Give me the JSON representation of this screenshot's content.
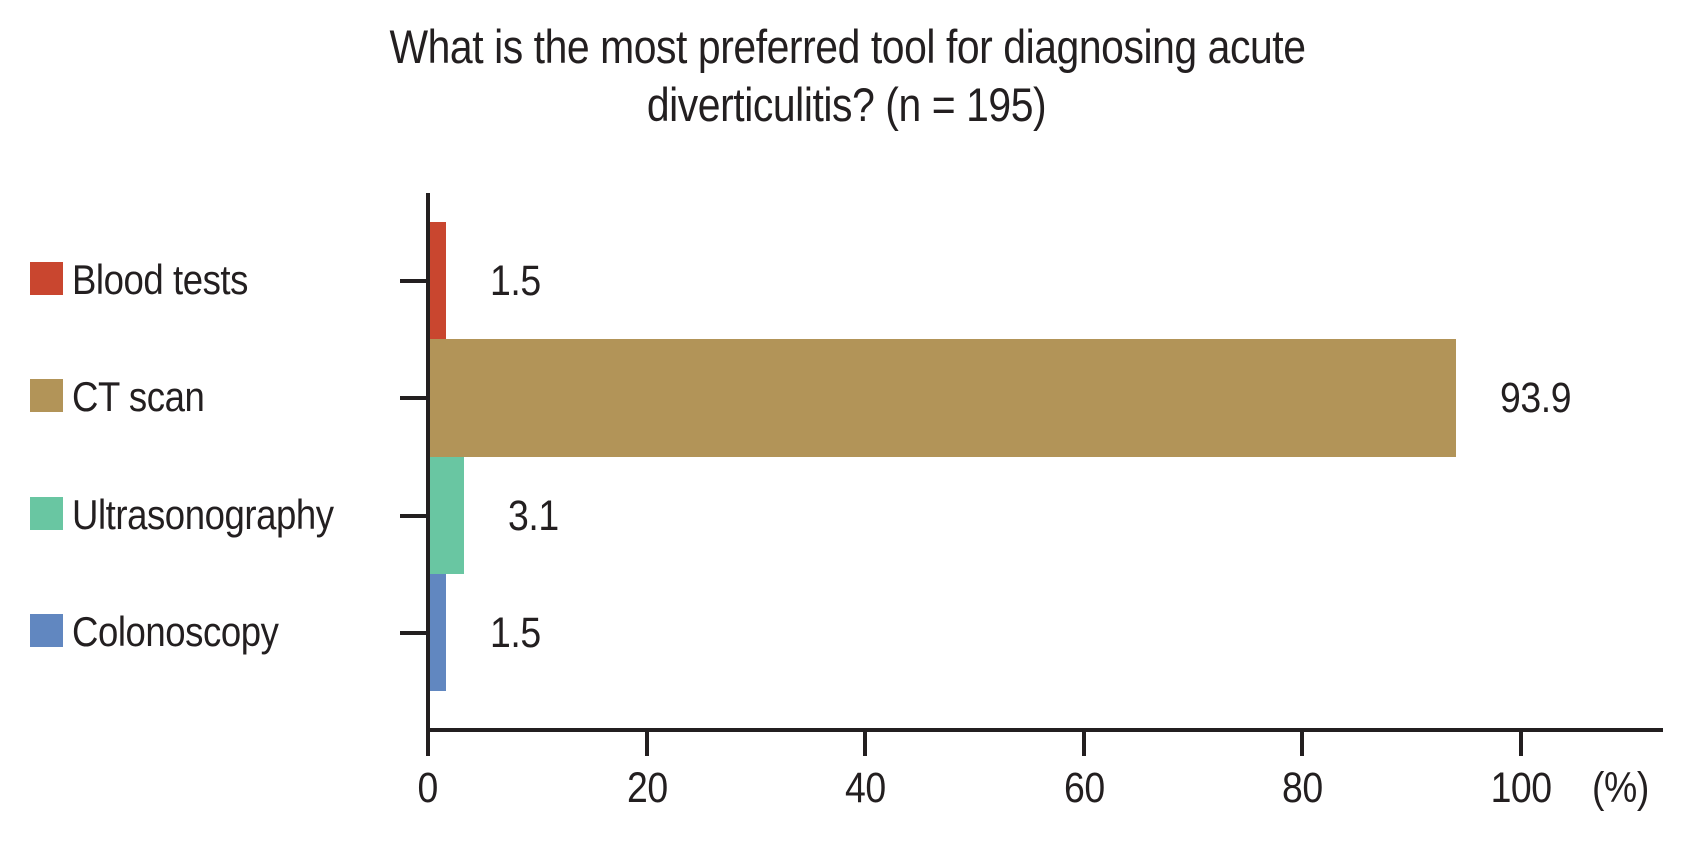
{
  "figure": {
    "background": "#FFFFFF",
    "text_color": "#231F20",
    "axis_color": "#231F20"
  },
  "chart_data": {
    "type": "bar",
    "orientation": "horizontal",
    "title": "What is the most preferred tool for diagnosing acute diverticulitis? (n = 195)",
    "title_lines": [
      "What is the most preferred tool for diagnosing acute",
      "diverticulitis? (n = 195)"
    ],
    "categories": [
      "Blood tests",
      "CT scan",
      "Ultrasonography",
      "Colonoscopy"
    ],
    "values": [
      1.5,
      93.9,
      3.1,
      1.5
    ],
    "value_labels": [
      "1.5",
      "93.9",
      "3.1",
      "1.5"
    ],
    "colors": [
      "#C9462F",
      "#B29458",
      "#69C6A2",
      "#6187C0"
    ],
    "xlabel": "(%)",
    "xlim": [
      0,
      113
    ],
    "xticks": [
      0,
      20,
      40,
      60,
      80,
      100
    ],
    "xtick_labels": [
      "0",
      "20",
      "40",
      "60",
      "80",
      "100"
    ],
    "grid": false,
    "legend_position": "left",
    "bar_labels_shown": true
  }
}
